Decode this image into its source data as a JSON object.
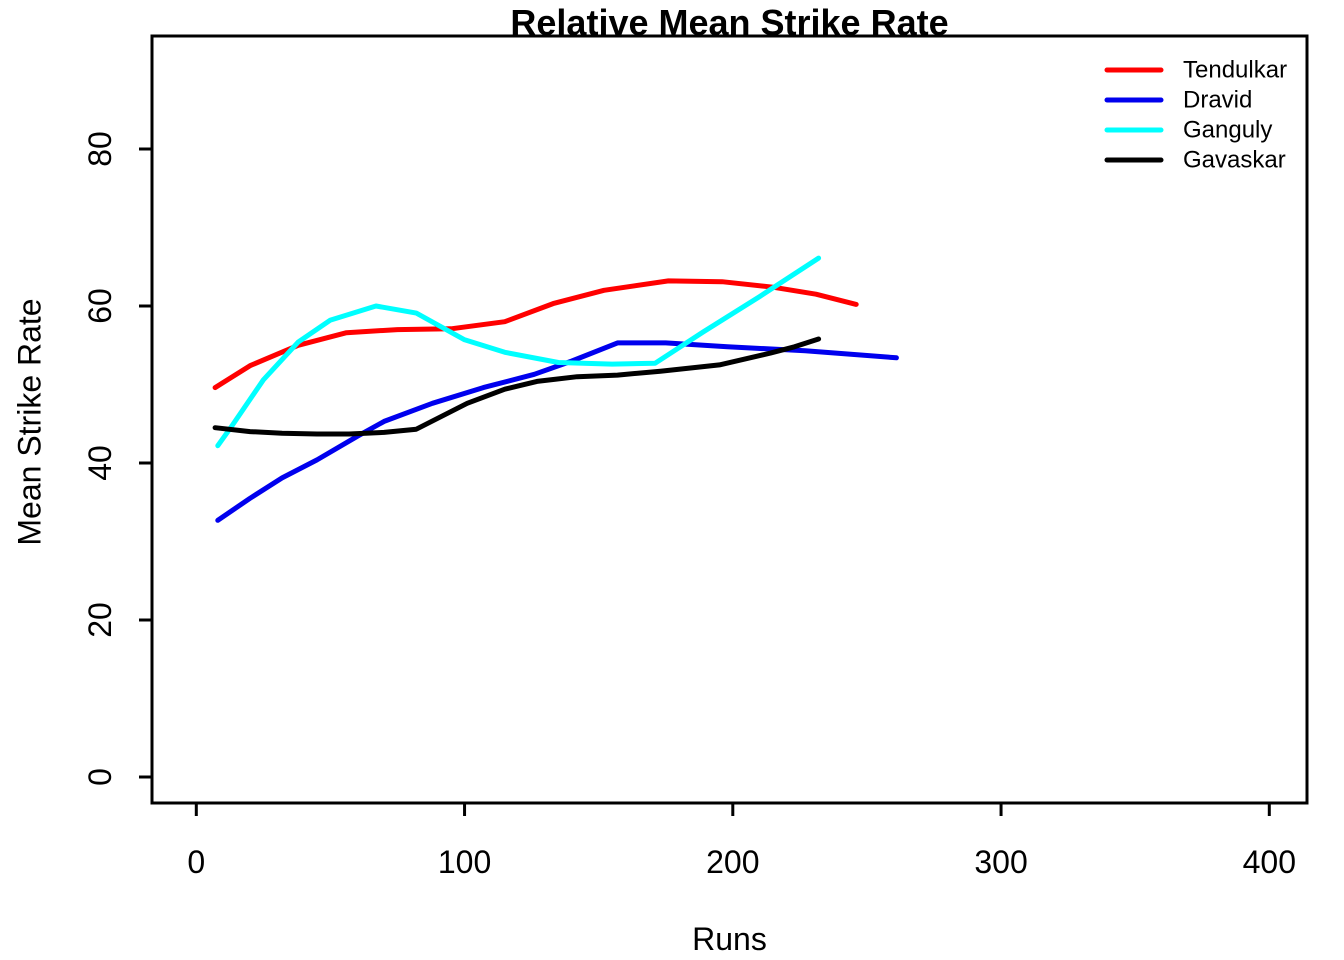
{
  "chart_data": {
    "type": "line",
    "title": "Relative Mean Strike Rate",
    "xlabel": "Runs",
    "ylabel": "Mean Strike Rate",
    "xlim": [
      0,
      414
    ],
    "ylim": [
      0,
      94
    ],
    "x_ticks": [
      0,
      100,
      200,
      300,
      400
    ],
    "y_ticks": [
      0,
      20,
      40,
      60,
      80
    ],
    "grid": false,
    "legend_position": "top-right-inside",
    "legend_box": false,
    "axis_color": "#000000",
    "background": "#ffffff",
    "series": [
      {
        "name": "Tendulkar",
        "color": "#ff0000",
        "x": [
          7,
          20,
          38,
          56,
          75,
          95,
          115,
          133,
          152,
          176,
          196,
          215,
          231,
          246
        ],
        "y": [
          49.6,
          52.4,
          55.0,
          56.6,
          57.0,
          57.1,
          58.0,
          60.3,
          62.0,
          63.2,
          63.1,
          62.4,
          61.5,
          60.2
        ]
      },
      {
        "name": "Dravid",
        "color": "#0000ee",
        "x": [
          8,
          20,
          32,
          45,
          60,
          70,
          88,
          107,
          126,
          140,
          157,
          175,
          198,
          227,
          261
        ],
        "y": [
          32.7,
          35.5,
          38.1,
          40.4,
          43.4,
          45.3,
          47.6,
          49.6,
          51.3,
          53.0,
          55.3,
          55.3,
          54.8,
          54.3,
          53.4
        ]
      },
      {
        "name": "Ganguly",
        "color": "#00ffff",
        "x": [
          8,
          13,
          25,
          38,
          50,
          67,
          82,
          100,
          115,
          135,
          155,
          171,
          189,
          210,
          232
        ],
        "y": [
          42.2,
          44.6,
          50.6,
          55.4,
          58.2,
          60.0,
          59.1,
          55.7,
          54.1,
          52.8,
          52.6,
          52.7,
          56.7,
          61.2,
          66.1
        ]
      },
      {
        "name": "Gavaskar",
        "color": "#000000",
        "x": [
          7,
          20,
          32,
          45,
          57,
          70,
          82,
          101,
          115,
          127,
          142,
          157,
          173,
          195,
          214,
          223,
          232
        ],
        "y": [
          44.5,
          44.0,
          43.8,
          43.7,
          43.7,
          43.9,
          44.3,
          47.6,
          49.4,
          50.4,
          51.0,
          51.2,
          51.7,
          52.5,
          54.0,
          54.8,
          55.8
        ]
      }
    ]
  }
}
